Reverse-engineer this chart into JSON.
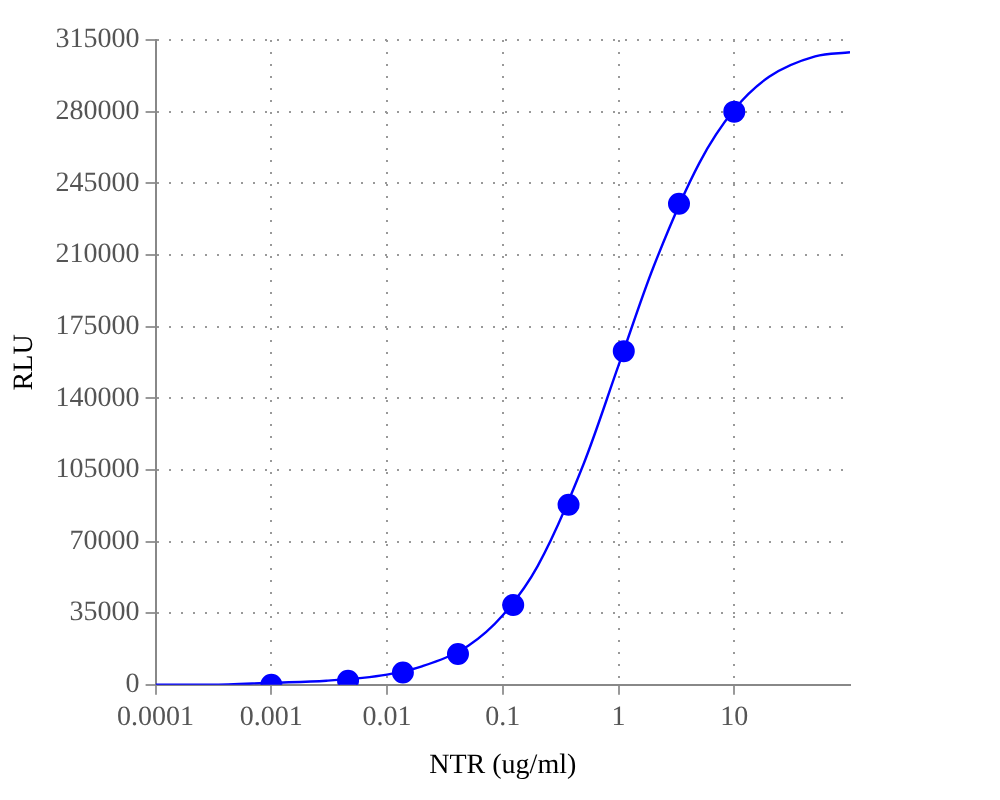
{
  "chart_data": {
    "type": "scatter",
    "xlabel": "NTR (ug/ml)",
    "ylabel": "RLU",
    "log": "x",
    "grid": true,
    "legend": false,
    "xlim": [
      0.0001,
      100
    ],
    "xticks": [
      0.0001,
      0.001,
      0.01,
      0.1,
      1,
      10
    ],
    "ylim": [
      0,
      315000
    ],
    "yticks": [
      0,
      35000,
      70000,
      105000,
      140000,
      175000,
      210000,
      245000,
      280000,
      315000
    ],
    "series": [
      {
        "type": "line",
        "color": "#0000ff",
        "marker": "none",
        "line_style": "solid",
        "x": [
          0.0001,
          0.0003,
          0.001,
          0.003,
          0.01,
          0.02,
          0.05,
          0.1,
          0.2,
          0.5,
          1,
          2,
          5,
          10,
          20,
          50,
          100
        ],
        "values": [
          0,
          0,
          1000,
          2000,
          5000,
          9000,
          19000,
          34000,
          58000,
          108000,
          156000,
          204000,
          255000,
          281000,
          297000,
          307000,
          309000
        ]
      },
      {
        "type": "scatter",
        "color": "#0000ff",
        "marker": "circle",
        "x": [
          0.001,
          0.0046,
          0.0137,
          0.041,
          0.123,
          0.37,
          1.11,
          3.33,
          10
        ],
        "values": [
          0,
          2000,
          6000,
          15000,
          39000,
          88000,
          163000,
          235000,
          280000
        ]
      }
    ]
  }
}
